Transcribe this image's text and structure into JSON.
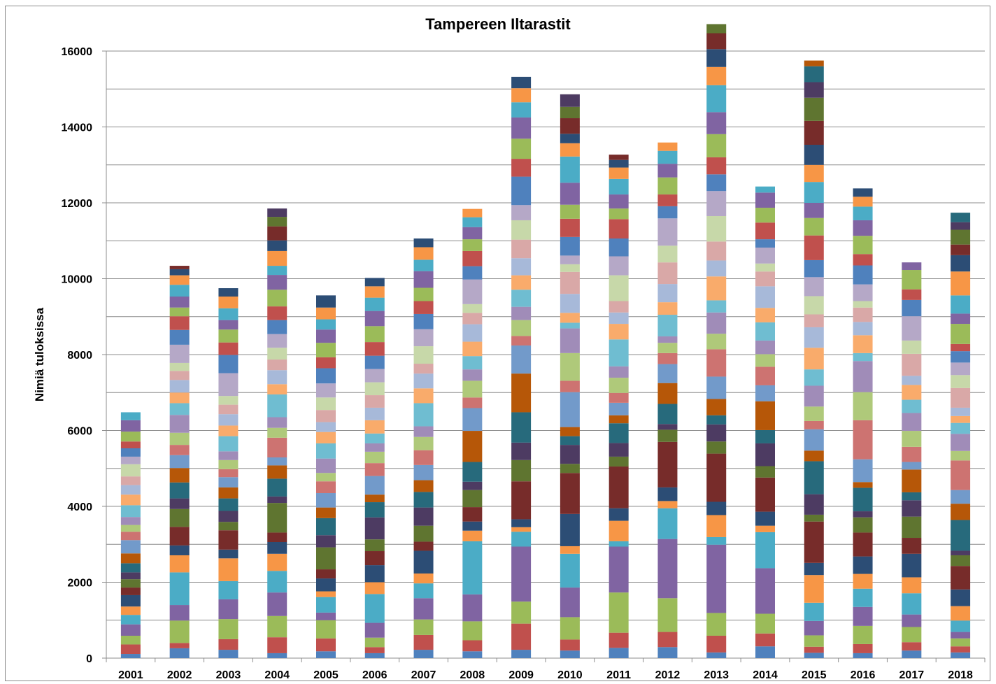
{
  "chart_data": {
    "type": "bar",
    "stacked": true,
    "title": "Tampereen Iltarastit",
    "xlabel": "",
    "ylabel": "Nimiä tuloksissa",
    "ylim": [
      0,
      16000
    ],
    "yticks": [
      0,
      2000,
      4000,
      6000,
      8000,
      10000,
      12000,
      14000,
      16000
    ],
    "grid": "horizontal",
    "legend": "none",
    "categories": [
      "2001",
      "2002",
      "2003",
      "2004",
      "2005",
      "2006",
      "2007",
      "2008",
      "2009",
      "2010",
      "2011",
      "2012",
      "2013",
      "2014",
      "2015",
      "2016",
      "2017",
      "2018"
    ],
    "palette": [
      "#4F81BD",
      "#C0504D",
      "#9BBB59",
      "#8064A2",
      "#4BACC6",
      "#F79646",
      "#2C4D75",
      "#772C2A",
      "#5F7530",
      "#4D3B62",
      "#276A7C",
      "#B65708",
      "#729ACA",
      "#CD7371",
      "#AFC97A",
      "#A08CB8",
      "#6FBDD1",
      "#F9AB6B",
      "#A7B9D9",
      "#D9A8A7",
      "#C7D8A9",
      "#B5A8C7"
    ],
    "stacks": [
      [
        110,
        250,
        230,
        300,
        250,
        220,
        300,
        200,
        220,
        180,
        240,
        260,
        350,
        220,
        180,
        210,
        310,
        280,
        250,
        230,
        320,
        200,
        220,
        180,
        260,
        300,
        210
      ],
      [
        260,
        140,
        590,
        410,
        860,
        450,
        260,
        490,
        470,
        280,
        420,
        380,
        340,
        270,
        320,
        470,
        310,
        280,
        330,
        240,
        210,
        480,
        390,
        360,
        230,
        290,
        310,
        250,
        160,
        90
      ],
      [
        220,
        280,
        530,
        520,
        480,
        600,
        230,
        510,
        220,
        290,
        330,
        290,
        270,
        210,
        240,
        230,
        400,
        280,
        300,
        250,
        230,
        600,
        480,
        330,
        340,
        250,
        310,
        310,
        220
      ],
      [
        130,
        420,
        560,
        620,
        570,
        450,
        310,
        250,
        780,
        170,
        470,
        350,
        210,
        520,
        260,
        280,
        600,
        270,
        370,
        280,
        310,
        360,
        370,
        360,
        440,
        390,
        240,
        390,
        280,
        370,
        250,
        220
      ],
      [
        180,
        340,
        480,
        200,
        410,
        150,
        340,
        240,
        580,
        320,
        450,
        280,
        380,
        310,
        220,
        380,
        400,
        300,
        260,
        320,
        330,
        370,
        400,
        290,
        380,
        350,
        270,
        310,
        320
      ],
      [
        130,
        160,
        250,
        390,
        760,
        310,
        450,
        370,
        310,
        580,
        400,
        200,
        490,
        340,
        300,
        220,
        260,
        350,
        330,
        330,
        340,
        350,
        350,
        360,
        420,
        400,
        350,
        300,
        220
      ],
      [
        220,
        390,
        410,
        560,
        390,
        260,
        600,
        240,
        420,
        480,
        410,
        310,
        400,
        390,
        350,
        280,
        610,
        390,
        390,
        260,
        460,
        450,
        400,
        340,
        350,
        440,
        300,
        330,
        230
      ],
      [
        180,
        290,
        500,
        710,
        1400,
        280,
        240,
        380,
        450,
        220,
        520,
        820,
        600,
        280,
        440,
        300,
        350,
        380,
        460,
        300,
        230,
        650,
        350,
        400,
        310,
        320,
        260,
        220
      ],
      [
        220,
        690,
        580,
        1450,
        390,
        120,
        210,
        1000,
        560,
        460,
        800,
        1020,
        740,
        250,
        420,
        350,
        450,
        380,
        450,
        490,
        510,
        400,
        750,
        470,
        530,
        560,
        400,
        370,
        300
      ],
      [
        200,
        290,
        590,
        780,
        890,
        200,
        850,
        1080,
        240,
        500,
        230,
        240,
        920,
        300,
        730,
        650,
        150,
        260,
        500,
        580,
        200,
        230,
        490,
        480,
        370,
        580,
        690,
        350,
        250,
        410,
        300,
        330
      ],
      [
        270,
        400,
        1060,
        1210,
        140,
        540,
        330,
        1100,
        260,
        360,
        520,
        210,
        330,
        260,
        400,
        300,
        710,
        410,
        300,
        300,
        680,
        500,
        470,
        510,
        280,
        370,
        410,
        300,
        200,
        140
      ],
      [
        290,
        400,
        890,
        1560,
        810,
        190,
        360,
        1200,
        320,
        150,
        530,
        550,
        500,
        290,
        270,
        170,
        570,
        330,
        480,
        570,
        440,
        720,
        320,
        310,
        450,
        360,
        340,
        220
      ],
      [
        150,
        440,
        600,
        1800,
        200,
        580,
        350,
        1270,
        320,
        450,
        240,
        430,
        590,
        720,
        410,
        560,
        320,
        630,
        420,
        500,
        670,
        660,
        440,
        450,
        610,
        580,
        710,
        480,
        470,
        420,
        240
      ],
      [
        310,
        340,
        520,
        1200,
        950,
        170,
        370,
        900,
        300,
        600,
        350,
        760,
        420,
        490,
        330,
        360,
        480,
        380,
        570,
        390,
        210,
        420,
        220,
        440,
        390,
        400,
        160
      ],
      [
        140,
        160,
        300,
        380,
        480,
        730,
        320,
        1090,
        180,
        540,
        870,
        280,
        560,
        220,
        380,
        550,
        430,
        570,
        540,
        340,
        480,
        500,
        450,
        650,
        460,
        400,
        550,
        450,
        530,
        630,
        610,
        410,
        420,
        150
      ],
      [
        130,
        240,
        480,
        500,
        480,
        390,
        460,
        630,
        400,
        160,
        620,
        150,
        600,
        1030,
        740,
        820,
        210,
        470,
        350,
        380,
        170,
        440,
        500,
        300,
        480,
        410,
        360,
        260,
        220
      ],
      [
        200,
        220,
        400,
        330,
        560,
        420,
        620,
        420,
        560,
        430,
        210,
        600,
        200,
        400,
        420,
        470,
        350,
        390,
        240,
        580,
        350,
        640,
        430,
        280,
        510,
        200
      ],
      [
        150,
        160,
        210,
        170,
        300,
        380,
        440,
        620,
        280,
        120,
        810,
        430,
        360,
        780,
        250,
        450,
        290,
        180,
        220,
        520,
        340,
        330,
        300,
        190,
        530,
        270,
        480,
        630,
        430,
        280,
        390,
        200,
        250
      ]
    ]
  }
}
